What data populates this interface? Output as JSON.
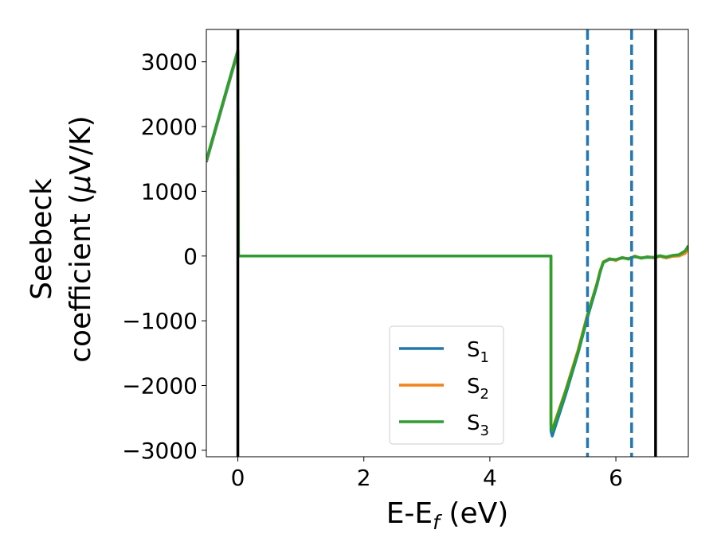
{
  "chart_data": {
    "type": "line",
    "xlabel": {
      "base": "E-E",
      "sub": "f",
      "unit": " (eV)"
    },
    "ylabel": {
      "line1": "Seebeck",
      "line2_pre": "coefficient  (",
      "mu": "μ",
      "line2_post": "V/K)"
    },
    "xlim": [
      -0.5,
      7.15
    ],
    "ylim": [
      -3100,
      3500
    ],
    "xticks": [
      0,
      2,
      4,
      6
    ],
    "xtick_labels": [
      "0",
      "2",
      "4",
      "6"
    ],
    "yticks": [
      -3000,
      -2000,
      -1000,
      0,
      1000,
      2000,
      3000
    ],
    "ytick_labels": [
      "−3000",
      "−2000",
      "−1000",
      "0",
      "1000",
      "2000",
      "3000"
    ],
    "grid": false,
    "legend_position": "lower-center",
    "series": [
      {
        "name": "S",
        "sub": "1",
        "color": "#1f77b4",
        "x": [
          -0.5,
          -0.25,
          0.0,
          0.0,
          0.01,
          4.97,
          4.97,
          4.99,
          5.2,
          5.4,
          5.55,
          5.7,
          5.75,
          5.8,
          5.9,
          6.0,
          6.1,
          6.2,
          6.3,
          6.4,
          6.5,
          6.6,
          6.7,
          6.8,
          6.9,
          7.0,
          7.1,
          7.15
        ],
        "y": [
          1450,
          2300,
          3150,
          3150,
          0,
          0,
          -2700,
          -2780,
          -2150,
          -1500,
          -950,
          -450,
          -250,
          -100,
          -50,
          -60,
          -30,
          -40,
          -10,
          -30,
          -20,
          -25,
          0,
          -20,
          0,
          10,
          60,
          140
        ]
      },
      {
        "name": "S",
        "sub": "2",
        "color": "#ff7f0e",
        "x": [
          -0.5,
          -0.25,
          0.0,
          0.0,
          0.01,
          4.97,
          4.97,
          4.99,
          5.2,
          5.4,
          5.55,
          5.7,
          5.75,
          5.8,
          5.9,
          6.0,
          6.1,
          6.2,
          6.3,
          6.4,
          6.5,
          6.6,
          6.7,
          6.8,
          6.9,
          7.0,
          7.1,
          7.15
        ],
        "y": [
          1470,
          2320,
          3170,
          3170,
          0,
          0,
          -2600,
          -2680,
          -2080,
          -1450,
          -900,
          -420,
          -230,
          -90,
          -40,
          -70,
          -20,
          -50,
          0,
          -35,
          -10,
          -30,
          -5,
          -30,
          -5,
          0,
          40,
          120
        ]
      },
      {
        "name": "S",
        "sub": "3",
        "color": "#2ca02c",
        "x": [
          -0.5,
          -0.25,
          0.0,
          0.0,
          0.01,
          4.97,
          4.97,
          4.99,
          5.2,
          5.4,
          5.55,
          5.7,
          5.75,
          5.8,
          5.9,
          6.0,
          6.1,
          6.2,
          6.3,
          6.4,
          6.5,
          6.6,
          6.7,
          6.8,
          6.9,
          7.0,
          7.1,
          7.15
        ],
        "y": [
          1480,
          2330,
          3180,
          3180,
          0,
          0,
          -2620,
          -2700,
          -2100,
          -1480,
          -920,
          -430,
          -240,
          -95,
          -45,
          -55,
          -25,
          -45,
          -5,
          -30,
          -15,
          -20,
          5,
          -15,
          10,
          20,
          80,
          160
        ]
      }
    ],
    "vlines": [
      {
        "x": 0.0,
        "style": "solid",
        "color": "#000000"
      },
      {
        "x": 5.55,
        "style": "dashed",
        "color": "#1f77b4"
      },
      {
        "x": 6.25,
        "style": "dashed",
        "color": "#1f77b4"
      },
      {
        "x": 6.63,
        "style": "solid",
        "color": "#000000"
      }
    ]
  }
}
